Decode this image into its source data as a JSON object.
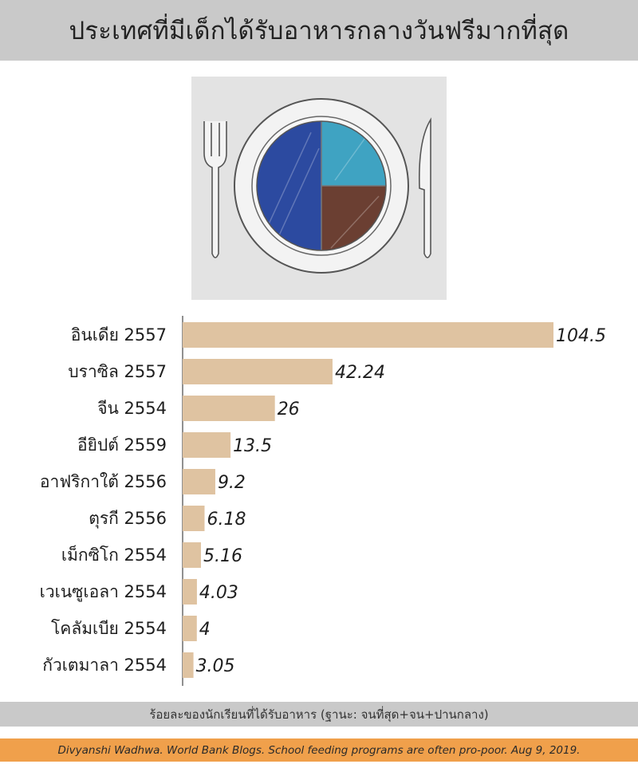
{
  "header": {
    "title": "ประเทศที่มีเด็กได้รับอาหารกลางวันฟรีมากที่สุด"
  },
  "illustration": {
    "icon_name": "plate-fork-knife-icon",
    "colors": {
      "dark_blue": "#2c4aa0",
      "light_blue": "#3fa3c2",
      "brown": "#6b3f32",
      "background": "#e3e3e3"
    }
  },
  "chart_data": {
    "type": "bar",
    "orientation": "horizontal",
    "categories": [
      "อินเดีย 2557",
      "บราซิล 2557",
      "จีน 2554",
      "อียิปต์ 2559",
      "อาฟริกาใต้ 2556",
      "ตุรกี 2556",
      "เม็กซิโก 2554",
      "เวเนซูเอลา 2554",
      "โคลัมเบีย 2554",
      "กัวเตมาลา 2554"
    ],
    "values": [
      104.5,
      42.24,
      26,
      13.5,
      9.2,
      6.18,
      5.16,
      4.03,
      4,
      3.05
    ],
    "value_labels": [
      "104.5",
      "42.24",
      "26",
      "13.5",
      "9.2",
      "6.18",
      "5.16",
      "4.03",
      "4",
      "3.05"
    ],
    "xlabel": "ร้อยละของนักเรียนที่ได้รับอาหาร (ฐานะ: จนที่สุด+จน+ปานกลาง)",
    "xlim": [
      0,
      104.5
    ],
    "bar_color": "#dfc3a1",
    "grid": false
  },
  "footer": {
    "source": "Divyanshi Wadhwa. World Bank Blogs. School feeding programs are often pro-poor. Aug 9, 2019."
  },
  "colors": {
    "header_bg": "#c9c9c9",
    "source_bg": "#f0a04b"
  }
}
